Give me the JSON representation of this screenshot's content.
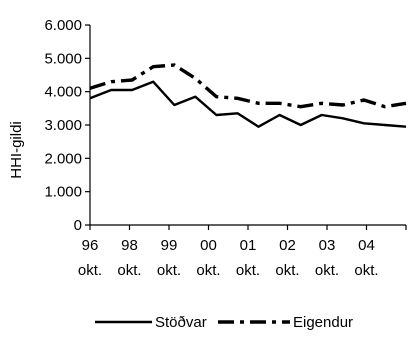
{
  "chart_data": {
    "type": "line",
    "ylabel": "HHI-gildi",
    "xlabel": "",
    "ylim": [
      0,
      6000
    ],
    "y_ticks": [
      0,
      1000,
      2000,
      3000,
      4000,
      5000,
      6000
    ],
    "y_tick_labels": [
      "0",
      "1.000",
      "2.000",
      "3.000",
      "4.000",
      "5.000",
      "6.000"
    ],
    "x_tick_labels": [
      {
        "year": "96",
        "month": "okt."
      },
      {
        "year": "98",
        "month": "okt."
      },
      {
        "year": "99",
        "month": "okt."
      },
      {
        "year": "00",
        "month": "okt."
      },
      {
        "year": "01",
        "month": "okt."
      },
      {
        "year": "02",
        "month": "okt."
      },
      {
        "year": "03",
        "month": "okt."
      },
      {
        "year": "04",
        "month": "okt."
      }
    ],
    "legend_position": "bottom",
    "grid": false,
    "series": [
      {
        "name": "Stöðvar",
        "style": "solid",
        "color": "#000000",
        "values": [
          3800,
          4050,
          4050,
          4300,
          3600,
          3850,
          3300,
          3350,
          2950,
          3300,
          3000,
          3300,
          3200,
          3050,
          3000,
          2950
        ]
      },
      {
        "name": "Eigendur",
        "style": "dash-dot",
        "color": "#000000",
        "values": [
          4100,
          4300,
          4350,
          4750,
          4800,
          4400,
          3850,
          3800,
          3650,
          3650,
          3550,
          3650,
          3600,
          3750,
          3550,
          3650
        ]
      }
    ]
  }
}
